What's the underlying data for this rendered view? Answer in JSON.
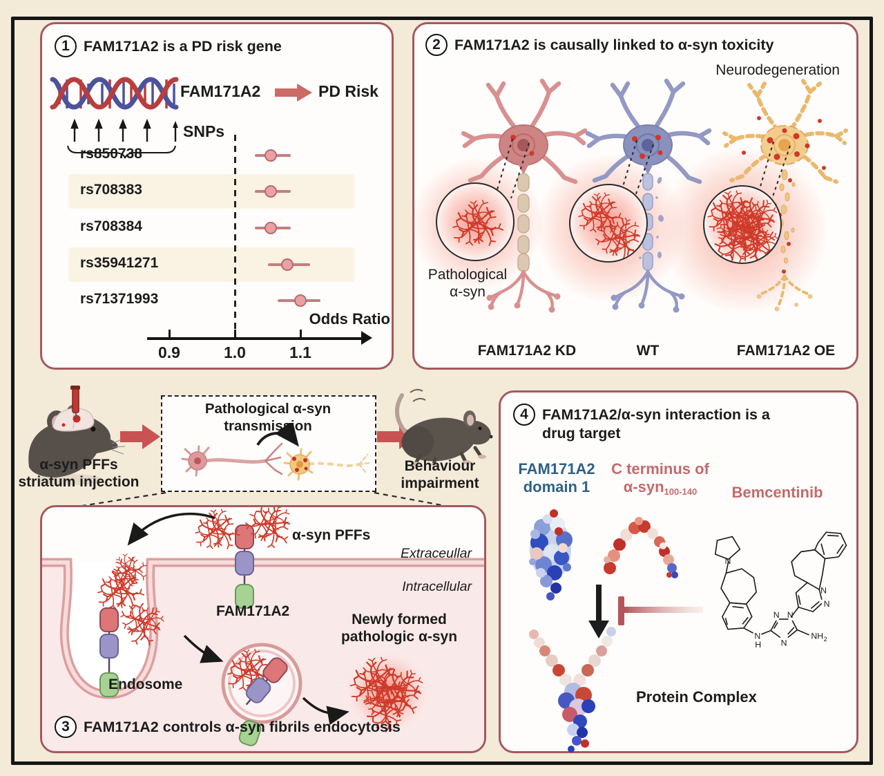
{
  "colors": {
    "background": "#f4ead8",
    "frame_border": "#151515",
    "panel_bg": "#fffdfb",
    "panel_border": "#a4595f",
    "accent_arrow_red": "#ca5252",
    "forest_point_fill": "#e9a2a4",
    "forest_point_stroke": "#b9676c",
    "fibril_red": "#cf3a2a",
    "teal_label": "#2d6187",
    "rose_label": "#c5696c",
    "neuron_kd_pink": "#d99090",
    "neuron_wt_blue": "#9399c4",
    "neuron_oe_yellow": "#f3cd8e"
  },
  "panel1": {
    "number": "1",
    "title": "FAM171A2 is a PD risk gene",
    "gene_label": "FAM171A2",
    "risk_label": "PD Risk",
    "snps_label": "SNPs",
    "chart_data": {
      "type": "forest_plot",
      "categories": [
        "rs850738",
        "rs708383",
        "rs708384",
        "rs35941271",
        "rs71371993"
      ],
      "series": [
        {
          "name": "Odds ratio",
          "values": [
            1.055,
            1.055,
            1.055,
            1.08,
            1.1
          ]
        }
      ],
      "ci_low": [
        1.03,
        1.03,
        1.03,
        1.05,
        1.065
      ],
      "ci_high": [
        1.085,
        1.085,
        1.085,
        1.115,
        1.13
      ],
      "xlabel": "Odds Ratio",
      "x_ticks": [
        0.9,
        1.0,
        1.1
      ],
      "reference_line": 1.0,
      "xlim": [
        0.86,
        1.18
      ],
      "shaded_rows": [
        1,
        3
      ],
      "grid": false
    }
  },
  "panel2": {
    "number": "2",
    "title": "FAM171A2 is causally linked to α-syn toxicity",
    "top_right_label": "Neurodegeneration",
    "inset_label_line1": "Pathological",
    "inset_label_line2": "α-syn",
    "conditions": [
      "FAM171A2 KD",
      "WT",
      "FAM171A2 OE"
    ]
  },
  "middle": {
    "left_label_line1": "α-syn PFFs",
    "left_label_line2": "striatum injection",
    "box_title": "Pathological α-syn transmission",
    "right_label_line1": "Behaviour",
    "right_label_line2": "impairment"
  },
  "panel3": {
    "number": "3",
    "title": "FAM171A2 controls α-syn fibrils endocytosis",
    "pffs_label": "α-syn PFFs",
    "extracellular_label": "Extraceullar",
    "intracellular_label": "Intracellular",
    "receptor_label": "FAM171A2",
    "newly_formed_line1": "Newly formed",
    "newly_formed_line2": "pathologic α-syn",
    "endosome_label": "Endosome"
  },
  "panel4": {
    "number": "4",
    "title_line1": "FAM171A2/α-syn interaction is a",
    "title_line2": "drug target",
    "domain_label_line1": "FAM171A2",
    "domain_label_line2": "domain 1",
    "cterm_line1": "C terminus of",
    "cterm_line2_main": "α-syn",
    "cterm_line2_sub": "100-140",
    "drug_label": "Bemcentinib",
    "complex_label": "Protein Complex"
  }
}
